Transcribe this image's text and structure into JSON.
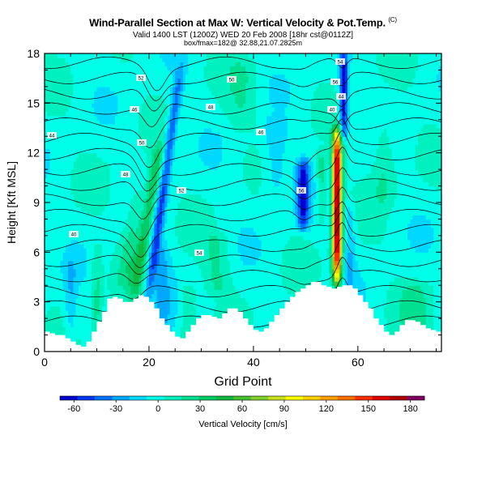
{
  "header": {
    "title": "Wind-Parallel Section at Max W: Vertical Velocity & Pot.Temp.",
    "title_mark": "(C)",
    "subtitle": "Valid 1400 LST (1200Z) WED 20 Feb 2008 [18hr cst@0112Z]",
    "subtitle2": "box/fmax=182@ 32.88,21.07.2825m"
  },
  "chart_data": {
    "type": "heatmap",
    "xlabel": "Grid Point",
    "ylabel": "Height [Kft MSL]",
    "xlim": [
      0,
      76
    ],
    "ylim": [
      0,
      18
    ],
    "xticks": [
      0,
      20,
      40,
      60
    ],
    "yticks": [
      0,
      3,
      6,
      9,
      12,
      15,
      18
    ],
    "grid": false,
    "colorbar": {
      "label": "Vertical Velocity [cm/s]",
      "ticks": [
        -60,
        -30,
        0,
        30,
        60,
        90,
        120,
        150,
        180
      ],
      "range": [
        -70,
        190
      ],
      "placement": "bottom",
      "colors": [
        "#0000d0",
        "#0038f0",
        "#0070ff",
        "#00a8ff",
        "#00d8ff",
        "#00ffe8",
        "#00f0c0",
        "#00e090",
        "#00cc66",
        "#10b840",
        "#44c030",
        "#80d030",
        "#c8e020",
        "#ffff00",
        "#ffd000",
        "#ffa000",
        "#ff7000",
        "#ff3000",
        "#e00000",
        "#b00000",
        "#800060"
      ]
    },
    "terrain_kft": [
      1.2,
      1.1,
      1.0,
      1.0,
      0.8,
      0.6,
      0.4,
      0.3,
      0.6,
      1.2,
      1.8,
      2.4,
      3.2,
      3.3,
      3.2,
      3.0,
      3.0,
      3.2,
      3.4,
      3.3,
      3.0,
      2.6,
      2.0,
      1.6,
      1.2,
      0.9,
      0.8,
      1.2,
      1.6,
      2.0,
      2.2,
      2.2,
      2.1,
      2.0,
      2.3,
      2.6,
      2.6,
      2.4,
      2.0,
      1.6,
      1.3,
      1.2,
      1.4,
      1.8,
      2.2,
      2.6,
      3.0,
      3.3,
      3.6,
      3.8,
      4.0,
      4.2,
      4.2,
      4.0,
      3.9,
      3.8,
      3.9,
      4.0,
      4.0,
      3.8,
      3.4,
      3.0,
      2.6,
      2.0,
      1.6,
      1.2,
      1.0,
      1.2,
      1.6,
      1.9,
      1.9,
      1.8,
      1.6,
      1.4,
      1.3,
      1.2,
      1.2
    ],
    "velocity_features": [
      {
        "gx": 17.0,
        "zlo": 3.2,
        "zhi": 12.5,
        "peak": 45,
        "tilt": 0.55,
        "width": 1.3
      },
      {
        "gx": 19.5,
        "zlo": 2.6,
        "zhi": 17.5,
        "peak": -48,
        "tilt": 0.45,
        "width": 1.0
      },
      {
        "gx": 15.0,
        "zlo": 4.0,
        "zhi": 10.0,
        "peak": 20,
        "tilt": 0.5,
        "width": 1.5
      },
      {
        "gx": 22.5,
        "zlo": 1.2,
        "zhi": 6.5,
        "peak": -24,
        "tilt": 0.0,
        "width": 1.7
      },
      {
        "gx": 27.5,
        "zlo": 0.8,
        "zhi": 4.0,
        "peak": 22,
        "tilt": 0.0,
        "width": 1.6
      },
      {
        "gx": 33.0,
        "zlo": 3.5,
        "zhi": 7.0,
        "peak": 18,
        "tilt": 0.0,
        "width": 2.5
      },
      {
        "gx": 10.0,
        "zlo": 0.8,
        "zhi": 6.5,
        "peak": 20,
        "tilt": 0.0,
        "width": 1.0
      },
      {
        "gx": 5.0,
        "zlo": 0.8,
        "zhi": 5.5,
        "peak": -18,
        "tilt": 0.0,
        "width": 1.2
      },
      {
        "gx": 49.5,
        "zlo": 7.5,
        "zhi": 11.5,
        "peak": -60,
        "tilt": 0.0,
        "width": 1.2
      },
      {
        "gx": 53.0,
        "zlo": 8.0,
        "zhi": 12.0,
        "peak": 28,
        "tilt": 0.0,
        "width": 0.9
      },
      {
        "gx": 56.0,
        "zlo": 4.0,
        "zhi": 13.5,
        "peak": 182,
        "tilt": 0.0,
        "width": 0.9
      },
      {
        "gx": 57.3,
        "zlo": 13.0,
        "zhi": 18.0,
        "peak": -68,
        "tilt": 0.0,
        "width": 0.8
      },
      {
        "gx": 58.5,
        "zlo": 3.5,
        "zhi": 9.0,
        "peak": -20,
        "tilt": 0.0,
        "width": 1.0
      },
      {
        "gx": 44.0,
        "zlo": 9.5,
        "zhi": 14.0,
        "peak": -18,
        "tilt": 0.0,
        "width": 2.5
      },
      {
        "gx": 65.0,
        "zlo": 9.0,
        "zhi": 14.0,
        "peak": 18,
        "tilt": 0.0,
        "width": 2.2
      },
      {
        "gx": 71.0,
        "zlo": 0.8,
        "zhi": 4.0,
        "peak": 18,
        "tilt": 0.0,
        "width": 3.0
      },
      {
        "gx": 38.0,
        "zlo": 13.5,
        "zhi": 17.5,
        "peak": 15,
        "tilt": 0.0,
        "width": 3.0
      }
    ],
    "contour_labels": [
      "40",
      "44",
      "46",
      "48",
      "50",
      "52",
      "54",
      "56"
    ]
  }
}
